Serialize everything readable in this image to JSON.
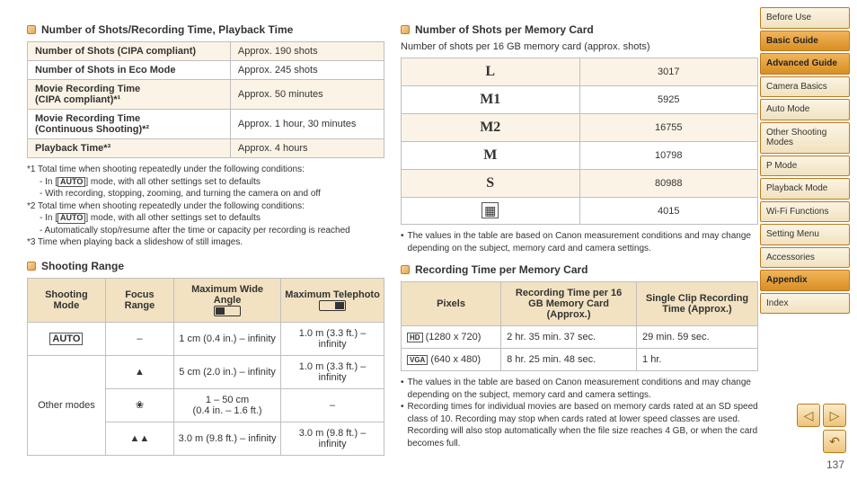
{
  "page_number": "137",
  "left": {
    "sec1": {
      "title": "Number of Shots/Recording Time, Playback Time",
      "rows": [
        {
          "label": "Number of Shots (CIPA compliant)",
          "value": "Approx. 190 shots"
        },
        {
          "label": "Number of Shots in Eco Mode",
          "value": "Approx. 245 shots"
        },
        {
          "label_html": "Movie Recording Time<br>(CIPA compliant)*¹",
          "value": "Approx. 50 minutes"
        },
        {
          "label_html": "Movie Recording Time<br>(Continuous Shooting)*²",
          "value": "Approx. 1 hour, 30 minutes"
        },
        {
          "label": "Playback Time*³",
          "value": "Approx. 4 hours"
        }
      ],
      "note1_a": "*1 Total time when shooting repeatedly under the following conditions:",
      "note1_b": "mode, with all other settings set to defaults",
      "note1_c": "- With recording, stopping, zooming, and turning the camera on and off",
      "note2_a": "*2 Total time when shooting repeatedly under the following conditions:",
      "note2_b": "mode, with all other settings set to defaults",
      "note2_c": "- Automatically stop/resume after the time or capacity per recording is reached",
      "note3": "*3 Time when playing back a slideshow of still images."
    },
    "sec2": {
      "title": "Shooting Range",
      "head": {
        "c1": "Shooting Mode",
        "c2": "Focus Range",
        "c3": "Maximum Wide Angle",
        "c4": "Maximum Telephoto"
      },
      "row_auto": {
        "mode_icon": "AUTO",
        "fr": "–",
        "wa": "1 cm (0.4 in.) – infinity",
        "tp": "1.0 m (3.3 ft.) – infinity"
      },
      "other_label": "Other modes",
      "other_rows": [
        {
          "fr_icon": "▲",
          "wa": "5 cm (2.0 in.) – infinity",
          "tp": "1.0 m (3.3 ft.) – infinity"
        },
        {
          "fr_icon": "❀",
          "wa": "1 – 50 cm\n(0.4 in. – 1.6 ft.)",
          "tp": "–"
        },
        {
          "fr_icon": "▲▲",
          "wa": "3.0 m (9.8 ft.) – infinity",
          "tp": "3.0 m (9.8 ft.) – infinity"
        }
      ]
    }
  },
  "right": {
    "sec1": {
      "title": "Number of Shots per Memory Card",
      "sub": "Number of shots per 16 GB memory card (approx. shots)",
      "rows": [
        {
          "sym": "L",
          "val": "3017"
        },
        {
          "sym": "M1",
          "val": "5925"
        },
        {
          "sym": "M2",
          "val": "16755"
        },
        {
          "sym": "M",
          "val": "10798"
        },
        {
          "sym": "S",
          "val": "80988"
        },
        {
          "sym_icon": "▦",
          "val": "4015"
        }
      ],
      "bullet": "The values in the table are based on Canon measurement conditions and may change depending on the subject, memory card and camera settings."
    },
    "sec2": {
      "title": "Recording Time per Memory Card",
      "head": {
        "c1": "Pixels",
        "c2": "Recording Time per 16 GB Memory Card (Approx.)",
        "c3": "Single Clip Recording Time (Approx.)"
      },
      "rows": [
        {
          "px_icon": "🅷🅳",
          "px": "(1280 x 720)",
          "t16": "2 hr. 35 min. 37 sec.",
          "tclip": "29 min. 59 sec."
        },
        {
          "px_icon": "🆅🅶🅰",
          "px": "(640 x 480)",
          "t16": "8 hr. 25 min. 48 sec.",
          "tclip": "1 hr."
        }
      ],
      "bullets": [
        "The values in the table are based on Canon measurement conditions and may change depending on the subject, memory card and camera settings.",
        "Recording times for individual movies are based on memory cards rated at an SD speed class of 10. Recording may stop when cards rated at lower speed classes are used. Recording will also stop automatically when the file size reaches 4 GB, or when the card becomes full."
      ]
    }
  },
  "sidebar": [
    {
      "label": "Before Use",
      "style": "light"
    },
    {
      "label": "Basic Guide",
      "style": "orange"
    },
    {
      "label": "Advanced Guide",
      "style": "orange"
    },
    {
      "label": "Camera Basics",
      "style": "light"
    },
    {
      "label": "Auto Mode",
      "style": "light"
    },
    {
      "label": "Other Shooting Modes",
      "style": "light"
    },
    {
      "label": "P Mode",
      "style": "light"
    },
    {
      "label": "Playback Mode",
      "style": "light"
    },
    {
      "label": "Wi-Fi Functions",
      "style": "light"
    },
    {
      "label": "Setting Menu",
      "style": "light"
    },
    {
      "label": "Accessories",
      "style": "light"
    },
    {
      "label": "Appendix",
      "style": "orange"
    },
    {
      "label": "Index",
      "style": "light"
    }
  ]
}
